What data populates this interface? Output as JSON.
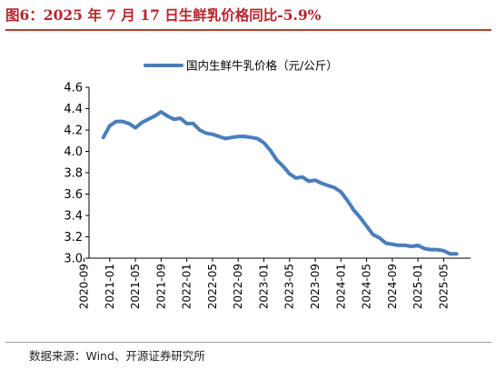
{
  "header": {
    "title": "图6：2025 年 7 月 17 日生鲜乳价格同比-5.9%"
  },
  "footer": {
    "source": "数据来源：Wind、开源证券研究所"
  },
  "chart_data": {
    "type": "line",
    "title": "",
    "xlabel": "",
    "ylabel": "",
    "ylim": [
      3.0,
      4.6
    ],
    "yticks": [
      "4.6",
      "4.4",
      "4.2",
      "4.0",
      "3.8",
      "3.6",
      "3.4",
      "3.2",
      "3.0"
    ],
    "xticks": [
      "2020-09",
      "2021-01",
      "2021-05",
      "2021-09",
      "2022-01",
      "2022-05",
      "2022-09",
      "2023-01",
      "2023-05",
      "2023-09",
      "2024-01",
      "2024-05",
      "2024-09",
      "2025-01",
      "2025-05"
    ],
    "legend_position": "top-center",
    "grid": false,
    "series": [
      {
        "name": "国内生鲜牛乳价格（元/公斤）",
        "color": "#4a7ebb",
        "x": [
          "2020-12",
          "2021-01",
          "2021-02",
          "2021-03",
          "2021-04",
          "2021-05",
          "2021-06",
          "2021-07",
          "2021-08",
          "2021-09",
          "2021-10",
          "2021-11",
          "2021-12",
          "2022-01",
          "2022-02",
          "2022-03",
          "2022-04",
          "2022-05",
          "2022-06",
          "2022-07",
          "2022-08",
          "2022-09",
          "2022-10",
          "2022-11",
          "2022-12",
          "2023-01",
          "2023-02",
          "2023-03",
          "2023-04",
          "2023-05",
          "2023-06",
          "2023-07",
          "2023-08",
          "2023-09",
          "2023-10",
          "2023-11",
          "2023-12",
          "2024-01",
          "2024-02",
          "2024-03",
          "2024-04",
          "2024-05",
          "2024-06",
          "2024-07",
          "2024-08",
          "2024-09",
          "2024-10",
          "2024-11",
          "2024-12",
          "2025-01",
          "2025-02",
          "2025-03",
          "2025-04",
          "2025-05",
          "2025-06",
          "2025-07"
        ],
        "values": [
          4.13,
          4.24,
          4.28,
          4.28,
          4.26,
          4.22,
          4.27,
          4.3,
          4.33,
          4.37,
          4.33,
          4.3,
          4.31,
          4.26,
          4.26,
          4.2,
          4.17,
          4.16,
          4.14,
          4.12,
          4.13,
          4.14,
          4.14,
          4.13,
          4.12,
          4.08,
          4.01,
          3.92,
          3.86,
          3.79,
          3.75,
          3.76,
          3.72,
          3.73,
          3.7,
          3.68,
          3.66,
          3.62,
          3.54,
          3.45,
          3.38,
          3.3,
          3.22,
          3.19,
          3.14,
          3.13,
          3.12,
          3.12,
          3.11,
          3.12,
          3.09,
          3.08,
          3.08,
          3.07,
          3.04,
          3.04
        ]
      }
    ]
  }
}
